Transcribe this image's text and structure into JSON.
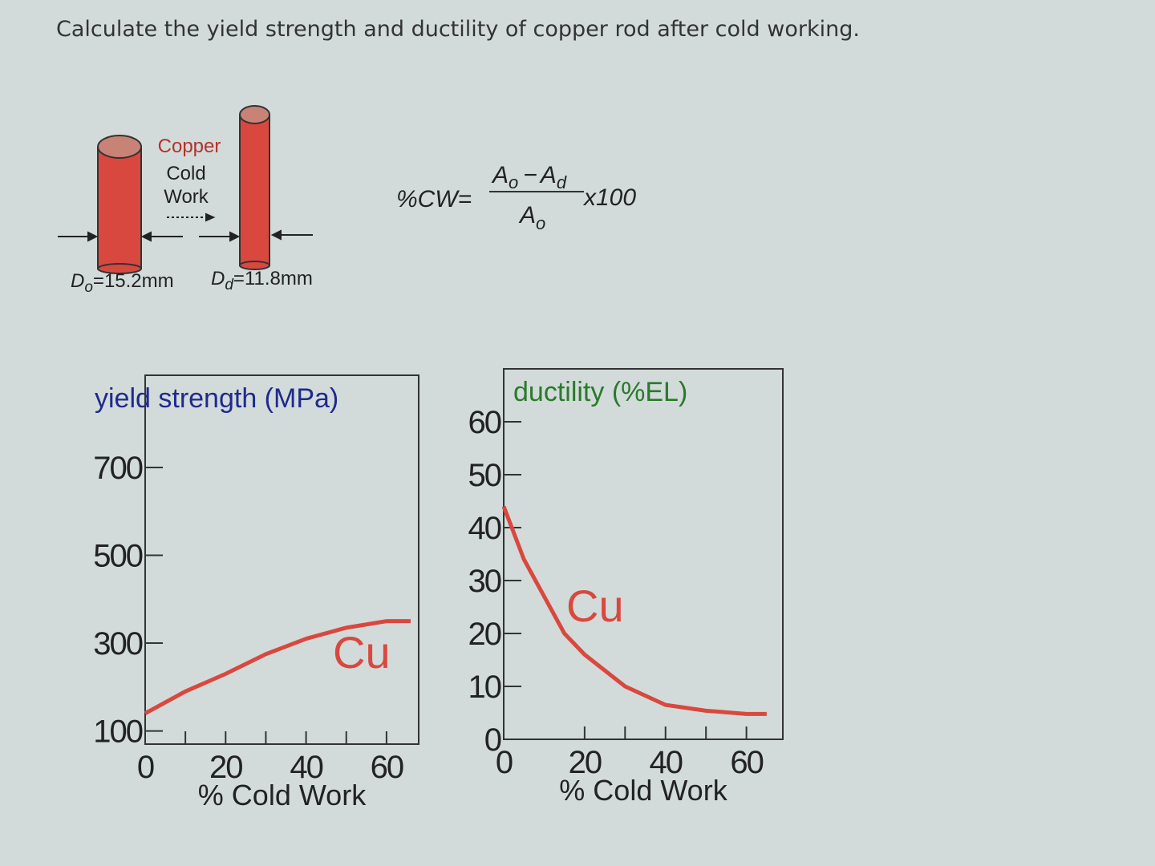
{
  "question": "Calculate the yield strength and ductility of copper rod after cold working.",
  "diagram": {
    "process_label": [
      "Copper",
      "Cold",
      "Work"
    ],
    "initial": {
      "symbol": "D",
      "subscript": "o",
      "value": "=15.2mm"
    },
    "drawn": {
      "symbol": "D",
      "subscript": "d",
      "value": "=11.8mm"
    }
  },
  "formula": {
    "lhs": "%CW=",
    "numerator": [
      "A",
      "o",
      "−",
      "A",
      "d"
    ],
    "denominator": [
      "A",
      "o"
    ],
    "multiplier": "x100"
  },
  "chart_data": [
    {
      "type": "line",
      "title": "yield strength (MPa)",
      "title_color": "#1f2a8c",
      "xlabel": "% Cold Work",
      "xlim": [
        0,
        68
      ],
      "ylim": [
        70,
        910
      ],
      "xticks": [
        0,
        20,
        40,
        60
      ],
      "minor_xticks": [
        10,
        30,
        50
      ],
      "yticks": [
        100,
        300,
        500,
        700
      ],
      "x": [
        0,
        10,
        20,
        30,
        40,
        50,
        60,
        66
      ],
      "series": [
        {
          "name": "Cu",
          "color": "#d9483f",
          "values": [
            140,
            190,
            230,
            275,
            310,
            335,
            350,
            350
          ]
        }
      ]
    },
    {
      "type": "line",
      "title": "ductility (%EL)",
      "title_color": "#2a7a2a",
      "xlabel": "% Cold Work",
      "xlim": [
        0,
        69
      ],
      "ylim": [
        0,
        70
      ],
      "xticks": [
        0,
        20,
        40,
        60
      ],
      "minor_xticks": [
        30,
        50
      ],
      "yticks": [
        0,
        10,
        20,
        30,
        40,
        50,
        60
      ],
      "x": [
        0,
        5,
        10,
        15,
        20,
        30,
        40,
        50,
        60,
        65
      ],
      "series": [
        {
          "name": "Cu",
          "color": "#d9483f",
          "values": [
            44,
            34,
            27,
            20,
            16,
            10,
            6.5,
            5.4,
            4.8,
            4.8
          ]
        }
      ]
    }
  ]
}
